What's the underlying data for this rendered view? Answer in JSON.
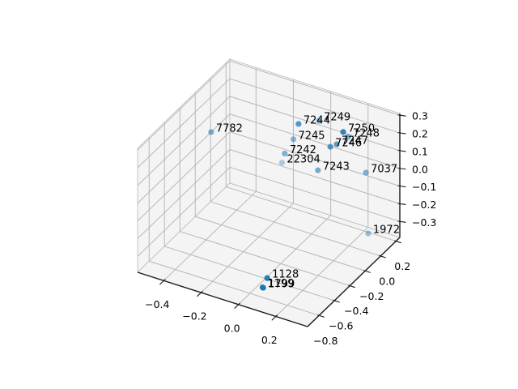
{
  "figure": {
    "background": "#ffffff"
  },
  "chart_data": {
    "type": "scatter",
    "subtype": "scatter3d",
    "title": "",
    "xlabel": "",
    "ylabel": "",
    "zlabel": "",
    "grid": true,
    "xlim": [
      -0.54,
      0.37
    ],
    "ylim": [
      -0.95,
      0.25
    ],
    "zlim": [
      -0.39,
      0.31
    ],
    "xticks": {
      "values": [
        -0.4,
        -0.2,
        0.0,
        0.2
      ],
      "labels": [
        "−0.4",
        "−0.2",
        "0.0",
        "0.2"
      ]
    },
    "yticks": {
      "values": [
        0.2,
        0.0,
        -0.2,
        -0.4,
        -0.6,
        -0.8
      ],
      "labels": [
        "0.2",
        "0.0",
        "−0.2",
        "−0.4",
        "−0.6",
        "−0.8"
      ]
    },
    "zticks": {
      "values": [
        0.3,
        0.2,
        0.1,
        0.0,
        -0.1,
        -0.2,
        -0.3
      ],
      "labels": [
        "0.3",
        "0.2",
        "0.1",
        "0.0",
        "−0.1",
        "−0.2",
        "−0.3"
      ]
    },
    "point_color": "#1f77b4",
    "grid_color": "#b8b8b8",
    "pane_color": "#f4f4f4",
    "axis_color": "#1a1a1a",
    "text_color": "#000000",
    "points": [
      {
        "label": "7782",
        "x": -0.393,
        "y": -0.351,
        "z": 0.2,
        "alpha": 0.55
      },
      {
        "label": "7244",
        "x": -0.038,
        "y": -0.076,
        "z": 0.25,
        "alpha": 0.75
      },
      {
        "label": "7249",
        "x": 0.031,
        "y": 0.022,
        "z": 0.25,
        "alpha": 0.6
      },
      {
        "label": "7245",
        "x": -0.032,
        "y": -0.158,
        "z": 0.2,
        "alpha": 0.5
      },
      {
        "label": "7250",
        "x": 0.138,
        "y": 0.077,
        "z": 0.2,
        "alpha": 0.9
      },
      {
        "label": "7248",
        "x": 0.163,
        "y": 0.078,
        "z": 0.18,
        "alpha": 0.6
      },
      {
        "label": "7246",
        "x": 0.111,
        "y": -0.025,
        "z": 0.15,
        "alpha": 0.75
      },
      {
        "label": "7247",
        "x": 0.126,
        "y": 0.021,
        "z": 0.15,
        "alpha": 0.7
      },
      {
        "label": "7242",
        "x": -0.081,
        "y": -0.151,
        "z": 0.1,
        "alpha": 0.55
      },
      {
        "label": "22304",
        "x": -0.091,
        "y": -0.163,
        "z": 0.05,
        "alpha": 0.35
      },
      {
        "label": "7243",
        "x": 0.085,
        "y": -0.123,
        "z": 0.05,
        "alpha": 0.6
      },
      {
        "label": "7037",
        "x": 0.251,
        "y": 0.098,
        "z": 0.0,
        "alpha": 0.55
      },
      {
        "label": "1972",
        "x": 0.329,
        "y": -0.062,
        "z": -0.25,
        "alpha": 0.45
      },
      {
        "label": "1128",
        "x": 0.072,
        "y": -0.751,
        "z": -0.3,
        "alpha": 0.95
      },
      {
        "label": "1199",
        "x": 0.07,
        "y": -0.806,
        "z": -0.33,
        "alpha": 0.95
      },
      {
        "label": "1799",
        "x": 0.074,
        "y": -0.808,
        "z": -0.33,
        "alpha": 0.95
      }
    ]
  }
}
